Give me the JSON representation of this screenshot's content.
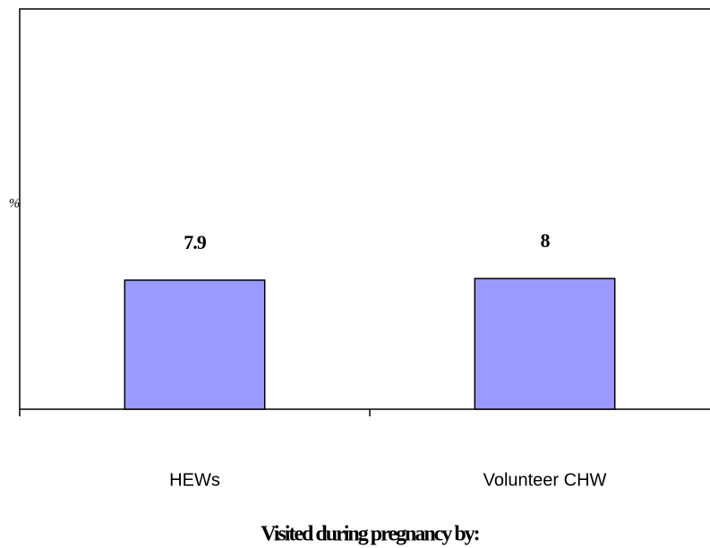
{
  "chart_data": {
    "type": "bar",
    "categories": [
      "HEWs",
      "Volunteer CHW"
    ],
    "values": [
      7.9,
      8
    ],
    "color": "#9999ff",
    "ylim": [
      0,
      24.5
    ],
    "x_label": "Visited during pregnancy by:",
    "y_label": "%",
    "grid": false
  }
}
